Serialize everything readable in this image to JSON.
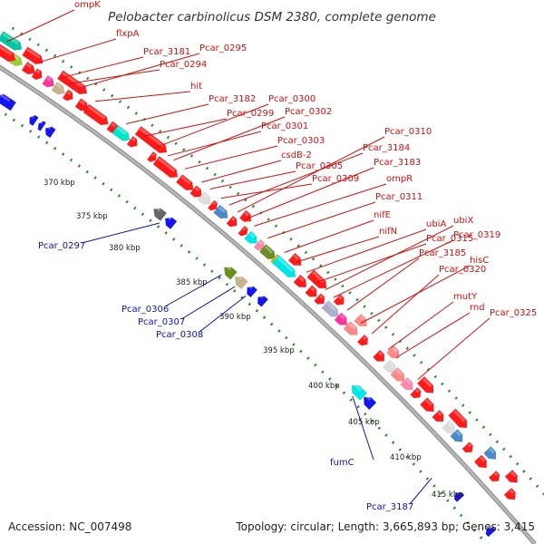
{
  "title": "Pelobacter carbinolicus DSM 2380, complete genome",
  "footer": {
    "accession": "Accession: NC_007498",
    "summary": "Topology: circular; Length: 3,665,893 bp; Genes: 3,415"
  },
  "colors": {
    "forward": "#ff1a1a",
    "reverse": "#1515ee",
    "backbone": "#888888",
    "dots": "#2e8b2e",
    "red_label": "#cc1111",
    "blue_label": "#1111aa"
  },
  "kbp_marks": [
    "370 kbp",
    "375 kbp",
    "380 kbp",
    "385 kbp",
    "390 kbp",
    "395 kbp",
    "400 kbp",
    "405 kbp",
    "410 kbp",
    "415 kbp"
  ],
  "forward_labels": [
    "ompK",
    "flxpA",
    "Pcar_3181",
    "Pcar_0294",
    "Pcar_0295",
    "hit",
    "Pcar_3182",
    "Pcar_0299",
    "Pcar_0300",
    "Pcar_0301",
    "Pcar_0302",
    "Pcar_0303",
    "csdB-2",
    "Pcar_0305",
    "Pcar_0309",
    "Pcar_3184",
    "Pcar_0310",
    "Pcar_3183",
    "ompR",
    "Pcar_0311",
    "nifE",
    "nifN",
    "ubiA",
    "Pcar_0315",
    "ubiX",
    "Pcar_0319",
    "Pcar_3185",
    "hisC",
    "Pcar_0320",
    "mutY",
    "rnd",
    "Pcar_0325"
  ],
  "reverse_labels": [
    "Pcar_0297",
    "Pcar_0306",
    "Pcar_0307",
    "Pcar_0308",
    "fumC",
    "Pcar_3187"
  ]
}
